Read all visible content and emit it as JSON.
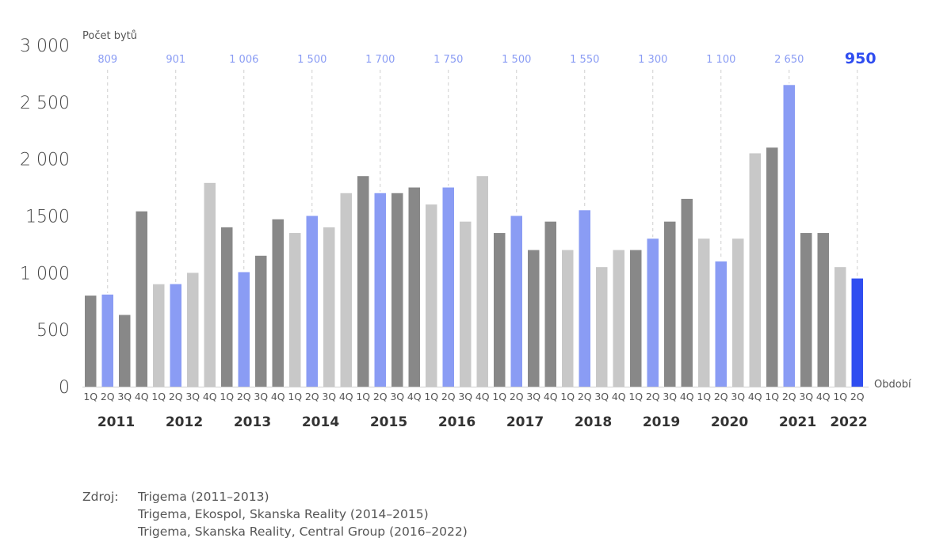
{
  "chart_data": {
    "type": "bar",
    "ylabel": "Počet bytů",
    "xlabel": "Období",
    "ylim": [
      0,
      3000
    ],
    "yticks": [
      "0",
      "500",
      "1 000",
      "1500",
      "2 000",
      "2 500",
      "3 000"
    ],
    "ytick_values": [
      0,
      500,
      1000,
      1500,
      2000,
      2500,
      3000
    ],
    "years": [
      "2011",
      "2012",
      "2013",
      "2014",
      "2015",
      "2016",
      "2017",
      "2018",
      "2019",
      "2020",
      "2021",
      "2022"
    ],
    "quarters": [
      "1Q",
      "2Q",
      "3Q",
      "4Q"
    ],
    "values": [
      800,
      809,
      630,
      1540,
      900,
      901,
      1000,
      1790,
      1400,
      1006,
      1150,
      1470,
      1350,
      1500,
      1400,
      1700,
      1850,
      1700,
      1700,
      1750,
      1600,
      1750,
      1450,
      1850,
      1350,
      1500,
      1200,
      1450,
      1200,
      1550,
      1050,
      1200,
      1200,
      1300,
      1450,
      1650,
      1300,
      1100,
      1300,
      2050,
      2100,
      2650,
      1350,
      1350,
      1050,
      950
    ],
    "bar_colors": [
      "#888888",
      "#8a9cf4",
      "#888888",
      "#888888",
      "#c8c8c8",
      "#8a9cf4",
      "#c8c8c8",
      "#c8c8c8",
      "#888888",
      "#8a9cf4",
      "#888888",
      "#888888",
      "#c8c8c8",
      "#8a9cf4",
      "#c8c8c8",
      "#c8c8c8",
      "#888888",
      "#8a9cf4",
      "#888888",
      "#888888",
      "#c8c8c8",
      "#8a9cf4",
      "#c8c8c8",
      "#c8c8c8",
      "#888888",
      "#8a9cf4",
      "#888888",
      "#888888",
      "#c8c8c8",
      "#8a9cf4",
      "#c8c8c8",
      "#c8c8c8",
      "#888888",
      "#8a9cf4",
      "#888888",
      "#888888",
      "#c8c8c8",
      "#8a9cf4",
      "#c8c8c8",
      "#c8c8c8",
      "#888888",
      "#8a9cf4",
      "#888888",
      "#888888",
      "#c8c8c8",
      "#2f4df0"
    ],
    "annotations": [
      {
        "index": 1,
        "label": "809"
      },
      {
        "index": 5,
        "label": "901"
      },
      {
        "index": 9,
        "label": "1 006"
      },
      {
        "index": 13,
        "label": "1 500"
      },
      {
        "index": 17,
        "label": "1 700"
      },
      {
        "index": 21,
        "label": "1 750"
      },
      {
        "index": 25,
        "label": "1 500"
      },
      {
        "index": 29,
        "label": "1 550"
      },
      {
        "index": 33,
        "label": "1 300"
      },
      {
        "index": 37,
        "label": "1 100"
      },
      {
        "index": 41,
        "label": "2 650"
      },
      {
        "index": 45,
        "label": "950"
      }
    ],
    "colors": {
      "dark_bar": "#888888",
      "light_bar": "#c8c8c8",
      "q2_bar": "#8a9cf4",
      "latest_bar": "#2f4df0",
      "annotation": "#8a9cf4",
      "latest_annotation": "#2f4df0"
    },
    "grid": false,
    "legend": "none"
  },
  "source": {
    "label": "Zdroj:",
    "lines": [
      "Trigema (2011–2013)",
      "Trigema, Ekospol, Skanska Reality (2014–2015)",
      "Trigema, Skanska Reality, Central Group (2016–2022)"
    ]
  }
}
